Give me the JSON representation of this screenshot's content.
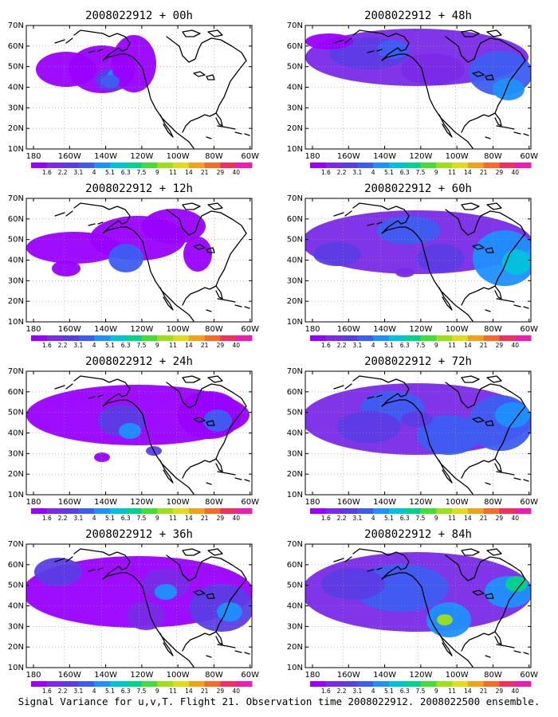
{
  "figure": {
    "caption": "Signal Variance for u,v,T. Flight 21. Observation time 2008022912. 2008022500 ensemble."
  },
  "lon_labels": [
    "180",
    "160W",
    "140W",
    "120W",
    "100W",
    "80W",
    "60W"
  ],
  "lat_labels": [
    "10N",
    "20N",
    "30N",
    "40N",
    "50N",
    "60N",
    "70N"
  ],
  "colorbar": {
    "labels": [
      "1.6",
      "2.2",
      "3.1",
      "4",
      "5.1",
      "6.3",
      "7.5",
      "9",
      "11",
      "14",
      "21",
      "29",
      "40"
    ],
    "colors": [
      "#9a00ff",
      "#7a2ae8",
      "#5b3de6",
      "#3d5df2",
      "#1e90ff",
      "#00c2dc",
      "#00d48c",
      "#43dd38",
      "#9be01a",
      "#e0dc1a",
      "#f2a21a",
      "#f76a2a",
      "#f2305c",
      "#ee1cb4"
    ]
  },
  "panels": [
    {
      "title": "2008022912 + 00h"
    },
    {
      "title": "2008022912 + 48h"
    },
    {
      "title": "2008022912 + 12h"
    },
    {
      "title": "2008022912 + 60h"
    },
    {
      "title": "2008022912 + 24h"
    },
    {
      "title": "2008022912 + 72h"
    },
    {
      "title": "2008022912 + 36h"
    },
    {
      "title": "2008022912 + 84h"
    }
  ]
}
